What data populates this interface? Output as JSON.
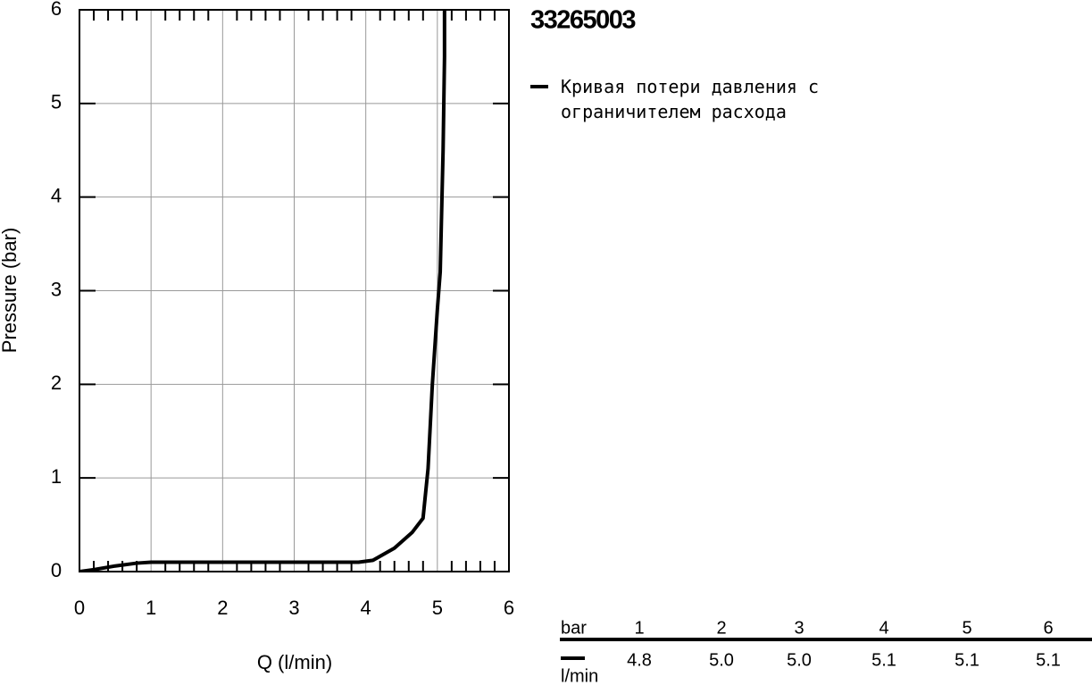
{
  "chart_data": {
    "type": "line",
    "title": "33265003",
    "x_label": "Q (l/min)",
    "y_label": "Pressure (bar)",
    "x": [
      0,
      0.2,
      0.5,
      0.8,
      1,
      2,
      3,
      3.9,
      4.1,
      4.4,
      4.65,
      4.8,
      4.87,
      4.93,
      5.0,
      5.04,
      5.08,
      5.1,
      5.1
    ],
    "series": [
      {
        "name": "Кривая потери давления с ограничителем расхода",
        "color": "#000000",
        "values": [
          0,
          0.02,
          0.06,
          0.09,
          0.1,
          0.1,
          0.1,
          0.1,
          0.12,
          0.25,
          0.42,
          0.57,
          1.1,
          2,
          2.8,
          3.2,
          4.5,
          5.5,
          6
        ]
      }
    ],
    "xlim": [
      0,
      6
    ],
    "ylim": [
      0,
      6
    ],
    "xticks": [
      0,
      1,
      2,
      3,
      4,
      5,
      6
    ],
    "yticks": [
      0,
      1,
      2,
      3,
      4,
      5,
      6
    ],
    "grid": true
  },
  "table": {
    "columns": [
      "bar",
      "1",
      "2",
      "3",
      "4",
      "5",
      "6"
    ],
    "rows": [
      {
        "label": "l/min",
        "cells": [
          "4.8",
          "5.0",
          "5.0",
          "5.1",
          "5.1",
          "5.1"
        ]
      }
    ]
  }
}
